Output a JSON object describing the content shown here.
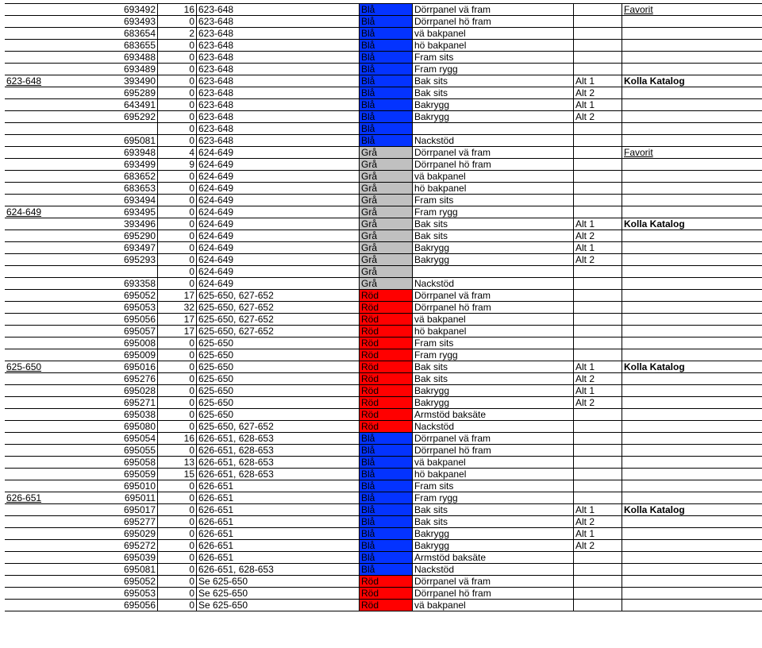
{
  "colors": {
    "Blå": "#0433ff",
    "Grå": "#c0c0c0",
    "Röd": "#ff0000"
  },
  "rows": [
    {
      "c0": "",
      "c1": "693492",
      "c2": "16",
      "c3": "623-648",
      "c4": "Blå",
      "c5": "Dörrpanel vä fram",
      "c6": "",
      "c7": "Favorit",
      "c7u": true
    },
    {
      "c0": "",
      "c1": "693493",
      "c2": "0",
      "c3": "623-648",
      "c4": "Blå",
      "c5": "Dörrpanel hö fram",
      "c6": "",
      "c7": ""
    },
    {
      "c0": "",
      "c1": "683654",
      "c2": "2",
      "c3": "623-648",
      "c4": "Blå",
      "c5": "vä bakpanel",
      "c6": "",
      "c7": ""
    },
    {
      "c0": "",
      "c1": "683655",
      "c2": "0",
      "c3": "623-648",
      "c4": "Blå",
      "c5": "hö bakpanel",
      "c6": "",
      "c7": ""
    },
    {
      "c0": "",
      "c1": "693488",
      "c2": "0",
      "c3": "623-648",
      "c4": "Blå",
      "c5": "Fram sits",
      "c6": "",
      "c7": ""
    },
    {
      "c0": "",
      "c1": "693489",
      "c2": "0",
      "c3": "623-648",
      "c4": "Blå",
      "c5": "Fram rygg",
      "c6": "",
      "c7": ""
    },
    {
      "c0": "623-648",
      "c0u": true,
      "c1": "393490",
      "c2": "0",
      "c3": "623-648",
      "c4": "Blå",
      "c5": "Bak sits",
      "c6": "Alt 1",
      "c7": "Kolla Katalog",
      "c7b": true
    },
    {
      "c0": "",
      "c1": "695289",
      "c2": "0",
      "c3": "623-648",
      "c4": "Blå",
      "c5": "Bak sits",
      "c6": "Alt 2",
      "c7": ""
    },
    {
      "c0": "",
      "c1": "643491",
      "c2": "0",
      "c3": "623-648",
      "c4": "Blå",
      "c5": "Bakrygg",
      "c6": "Alt 1",
      "c7": ""
    },
    {
      "c0": "",
      "c1": "695292",
      "c2": "0",
      "c3": "623-648",
      "c4": "Blå",
      "c5": "Bakrygg",
      "c6": "Alt 2",
      "c7": ""
    },
    {
      "c0": "",
      "c1": "",
      "c2": "0",
      "c3": "623-648",
      "c4": "Blå",
      "c5": "",
      "c6": "",
      "c7": ""
    },
    {
      "c0": "",
      "c1": "695081",
      "c2": "0",
      "c3": "623-648",
      "c4": "Blå",
      "c5": "Nackstöd",
      "c6": "",
      "c7": ""
    },
    {
      "c0": "",
      "c1": "693948",
      "c2": "4",
      "c3": "624-649",
      "c4": "Grå",
      "c5": "Dörrpanel vä fram",
      "c6": "",
      "c7": "Favorit",
      "c7u": true
    },
    {
      "c0": "",
      "c1": "693499",
      "c2": "9",
      "c3": "624-649",
      "c4": "Grå",
      "c5": "Dörrpanel hö fram",
      "c6": "",
      "c7": ""
    },
    {
      "c0": "",
      "c1": "683652",
      "c2": "0",
      "c3": "624-649",
      "c4": "Grå",
      "c5": "vä bakpanel",
      "c6": "",
      "c7": ""
    },
    {
      "c0": "",
      "c1": "683653",
      "c2": "0",
      "c3": "624-649",
      "c4": "Grå",
      "c5": "hö bakpanel",
      "c6": "",
      "c7": ""
    },
    {
      "c0": "",
      "c1": "693494",
      "c2": "0",
      "c3": "624-649",
      "c4": "Grå",
      "c5": "Fram sits",
      "c6": "",
      "c7": ""
    },
    {
      "c0": "624-649",
      "c0u": true,
      "c1": "693495",
      "c2": "0",
      "c3": "624-649",
      "c4": "Grå",
      "c5": "Fram rygg",
      "c6": "",
      "c7": ""
    },
    {
      "c0": "",
      "c1": "393496",
      "c2": "0",
      "c3": "624-649",
      "c4": "Grå",
      "c5": "Bak sits",
      "c6": "Alt 1",
      "c7": "Kolla Katalog",
      "c7b": true
    },
    {
      "c0": "",
      "c1": "695290",
      "c2": "0",
      "c3": "624-649",
      "c4": "Grå",
      "c5": "Bak sits",
      "c6": "Alt 2",
      "c7": ""
    },
    {
      "c0": "",
      "c1": "693497",
      "c2": "0",
      "c3": "624-649",
      "c4": "Grå",
      "c5": "Bakrygg",
      "c6": "Alt 1",
      "c7": ""
    },
    {
      "c0": "",
      "c1": "695293",
      "c2": "0",
      "c3": "624-649",
      "c4": "Grå",
      "c5": "Bakrygg",
      "c6": "Alt 2",
      "c7": ""
    },
    {
      "c0": "",
      "c1": "",
      "c2": "0",
      "c3": "624-649",
      "c4": "Grå",
      "c5": "",
      "c6": "",
      "c7": ""
    },
    {
      "c0": "",
      "c1": "693358",
      "c2": "0",
      "c3": "624-649",
      "c4": "Grå",
      "c5": "Nackstöd",
      "c6": "",
      "c7": ""
    },
    {
      "c0": "",
      "c1": "695052",
      "c2": "17",
      "c3": "625-650, 627-652",
      "c4": "Röd",
      "c5": "Dörrpanel vä fram",
      "c6": "",
      "c7": ""
    },
    {
      "c0": "",
      "c1": "695053",
      "c2": "32",
      "c3": "625-650, 627-652",
      "c4": "Röd",
      "c5": "Dörrpanel hö fram",
      "c6": "",
      "c7": ""
    },
    {
      "c0": "",
      "c1": "695056",
      "c2": "17",
      "c3": "625-650, 627-652",
      "c4": "Röd",
      "c5": "vä bakpanel",
      "c6": "",
      "c7": ""
    },
    {
      "c0": "",
      "c1": "695057",
      "c2": "17",
      "c3": "625-650, 627-652",
      "c4": "Röd",
      "c5": "hö bakpanel",
      "c6": "",
      "c7": ""
    },
    {
      "c0": "",
      "c1": "695008",
      "c2": "0",
      "c3": "625-650",
      "c4": "Röd",
      "c5": "Fram sits",
      "c6": "",
      "c7": ""
    },
    {
      "c0": "",
      "c1": "695009",
      "c2": "0",
      "c3": "625-650",
      "c4": "Röd",
      "c5": "Fram rygg",
      "c6": "",
      "c7": ""
    },
    {
      "c0": "625-650",
      "c0u": true,
      "c1": "695016",
      "c2": "0",
      "c3": "625-650",
      "c4": "Röd",
      "c5": "Bak sits",
      "c6": "Alt 1",
      "c7": "Kolla Katalog",
      "c7b": true
    },
    {
      "c0": "",
      "c1": "695276",
      "c2": "0",
      "c3": "625-650",
      "c4": "Röd",
      "c5": "Bak sits",
      "c6": "Alt 2",
      "c7": ""
    },
    {
      "c0": "",
      "c1": "695028",
      "c2": "0",
      "c3": "625-650",
      "c4": "Röd",
      "c5": "Bakrygg",
      "c6": "Alt 1",
      "c7": ""
    },
    {
      "c0": "",
      "c1": "695271",
      "c2": "0",
      "c3": "625-650",
      "c4": "Röd",
      "c5": "Bakrygg",
      "c6": "Alt 2",
      "c7": ""
    },
    {
      "c0": "",
      "c1": "695038",
      "c2": "0",
      "c3": "625-650",
      "c4": "Röd",
      "c5": "Armstöd baksäte",
      "c6": "",
      "c7": ""
    },
    {
      "c0": "",
      "c1": "695080",
      "c2": "0",
      "c3": "625-650, 627-652",
      "c4": "Röd",
      "c5": "Nackstöd",
      "c6": "",
      "c7": ""
    },
    {
      "c0": "",
      "c1": "695054",
      "c2": "16",
      "c3": "626-651, 628-653",
      "c4": "Blå",
      "c5": "Dörrpanel vä fram",
      "c6": "",
      "c7": ""
    },
    {
      "c0": "",
      "c1": "695055",
      "c2": "0",
      "c3": "626-651, 628-653",
      "c4": "Blå",
      "c5": "Dörrpanel hö fram",
      "c6": "",
      "c7": ""
    },
    {
      "c0": "",
      "c1": "695058",
      "c2": "13",
      "c3": "626-651, 628-653",
      "c4": "Blå",
      "c5": "vä bakpanel",
      "c6": "",
      "c7": ""
    },
    {
      "c0": "",
      "c1": "695059",
      "c2": "15",
      "c3": "626-651, 628-653",
      "c4": "Blå",
      "c5": "hö bakpanel",
      "c6": "",
      "c7": ""
    },
    {
      "c0": "",
      "c1": "695010",
      "c2": "0",
      "c3": "626-651",
      "c4": "Blå",
      "c5": "Fram sits",
      "c6": "",
      "c7": ""
    },
    {
      "c0": "626-651",
      "c0u": true,
      "c1": "695011",
      "c2": "0",
      "c3": "626-651",
      "c4": "Blå",
      "c5": "Fram rygg",
      "c6": "",
      "c7": ""
    },
    {
      "c0": "",
      "c1": "695017",
      "c2": "0",
      "c3": "626-651",
      "c4": "Blå",
      "c5": "Bak sits",
      "c6": "Alt 1",
      "c7": "Kolla Katalog",
      "c7b": true
    },
    {
      "c0": "",
      "c1": "695277",
      "c2": "0",
      "c3": "626-651",
      "c4": "Blå",
      "c5": "Bak sits",
      "c6": "Alt 2",
      "c7": ""
    },
    {
      "c0": "",
      "c1": "695029",
      "c2": "0",
      "c3": "626-651",
      "c4": "Blå",
      "c5": "Bakrygg",
      "c6": "Alt 1",
      "c7": ""
    },
    {
      "c0": "",
      "c1": "695272",
      "c2": "0",
      "c3": "626-651",
      "c4": "Blå",
      "c5": "Bakrygg",
      "c6": "Alt 2",
      "c7": ""
    },
    {
      "c0": "",
      "c1": "695039",
      "c2": "0",
      "c3": "626-651",
      "c4": "Blå",
      "c5": "Armstöd baksäte",
      "c6": "",
      "c7": ""
    },
    {
      "c0": "",
      "c1": "695081",
      "c2": "0",
      "c3": "626-651, 628-653",
      "c4": "Blå",
      "c5": "Nackstöd",
      "c6": "",
      "c7": ""
    },
    {
      "c0": "",
      "c1": "695052",
      "c2": "0",
      "c3": "Se 625-650",
      "c4": "Röd",
      "c5": "Dörrpanel vä fram",
      "c6": "",
      "c7": ""
    },
    {
      "c0": "",
      "c1": "695053",
      "c2": "0",
      "c3": "Se 625-650",
      "c4": "Röd",
      "c5": "Dörrpanel hö fram",
      "c6": "",
      "c7": ""
    },
    {
      "c0": "",
      "c1": "695056",
      "c2": "0",
      "c3": "Se 625-650",
      "c4": "Röd",
      "c5": "vä bakpanel",
      "c6": "",
      "c7": ""
    }
  ]
}
